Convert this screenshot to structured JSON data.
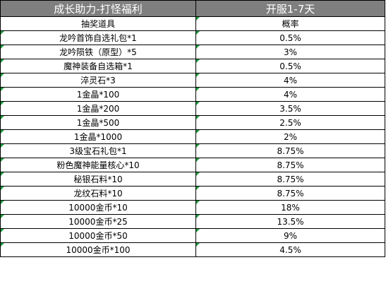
{
  "table": {
    "title_left": "成长助力-打怪福利",
    "title_right": "开服1-7天",
    "header_left": "抽奖道具",
    "header_right": "概率",
    "rows": [
      {
        "item": "龙吟首饰自选礼包*1",
        "prob": "0.5%"
      },
      {
        "item": "龙吟陨铁（原型）*5",
        "prob": "3%"
      },
      {
        "item": "魔神装备自选箱*1",
        "prob": "0.5%"
      },
      {
        "item": "淬灵石*3",
        "prob": "4%"
      },
      {
        "item": "1金晶*100",
        "prob": "4%"
      },
      {
        "item": "1金晶*200",
        "prob": "3.5%"
      },
      {
        "item": "1金晶*500",
        "prob": "2.5%"
      },
      {
        "item": "1金晶*1000",
        "prob": "2%"
      },
      {
        "item": "3级宝石礼包*1",
        "prob": "8.75%"
      },
      {
        "item": "粉色魔神能量核心*10",
        "prob": "8.75%"
      },
      {
        "item": "秘银石料*10",
        "prob": "8.75%"
      },
      {
        "item": "龙纹石料*10",
        "prob": "8.75%"
      },
      {
        "item": "10000金币*10",
        "prob": "18%"
      },
      {
        "item": "10000金币*25",
        "prob": "13.5%"
      },
      {
        "item": "10000金币*50",
        "prob": "9%"
      },
      {
        "item": "10000金币*100",
        "prob": "4.5%"
      }
    ]
  },
  "colors": {
    "title_bg": "#7f7f7f",
    "title_text": "#ffffff",
    "grid_line": "#000000",
    "cell_marker": "#1e9e3c"
  }
}
